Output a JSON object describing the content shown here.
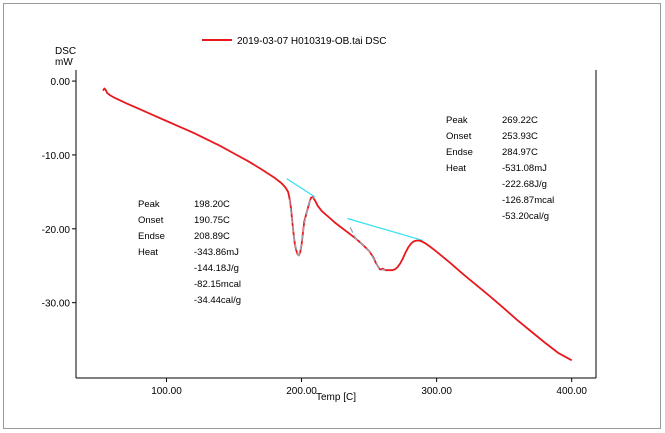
{
  "chart_data": {
    "type": "line",
    "legend": {
      "label": "2019-03-07 H010319-OB.tai DSC",
      "placement": "top-center"
    },
    "ylabel_line1": "DSC",
    "ylabel_line2": "mW",
    "xlabel": "Temp  [C]",
    "xlim": [
      33,
      418
    ],
    "ylim": [
      -40.2,
      1.5
    ],
    "x_ticks": [
      100,
      200,
      300,
      400
    ],
    "x_tick_labels": [
      "100.00",
      "200.00",
      "300.00",
      "400.00"
    ],
    "y_ticks": [
      0,
      -10,
      -20,
      -30
    ],
    "y_tick_labels": [
      "0.00",
      "-10.00",
      "-20.00",
      "-30.00"
    ],
    "series": [
      {
        "color": "#e8191e",
        "x": [
          53,
          54,
          55,
          56,
          58,
          62,
          70,
          80,
          90,
          100,
          110,
          120,
          130,
          140,
          150,
          160,
          170,
          180,
          185,
          188,
          190,
          191,
          192,
          193,
          194,
          195,
          196,
          197,
          198,
          199,
          200,
          201,
          202,
          204,
          206,
          207,
          208,
          209,
          210,
          212,
          215,
          220,
          225,
          230,
          235,
          240,
          245,
          250,
          253,
          255,
          257,
          258,
          259,
          260,
          261,
          262,
          263,
          265,
          267,
          269,
          271,
          273,
          275,
          277,
          279,
          281,
          283,
          285,
          287,
          289,
          292,
          295,
          300,
          310,
          320,
          330,
          340,
          350,
          360,
          370,
          380,
          390,
          400
        ],
        "y": [
          -1.3,
          -1.0,
          -1.2,
          -1.6,
          -1.9,
          -2.3,
          -3.0,
          -3.8,
          -4.6,
          -5.4,
          -6.2,
          -7.0,
          -7.9,
          -8.8,
          -9.8,
          -10.8,
          -11.9,
          -13.1,
          -13.8,
          -14.4,
          -15.0,
          -15.8,
          -17.0,
          -18.8,
          -20.6,
          -22.0,
          -22.9,
          -23.4,
          -23.6,
          -23.2,
          -22.1,
          -20.6,
          -19.0,
          -17.6,
          -16.3,
          -15.8,
          -15.7,
          -15.9,
          -16.2,
          -16.9,
          -17.6,
          -18.4,
          -19.2,
          -19.9,
          -20.6,
          -21.3,
          -22.1,
          -23.0,
          -23.8,
          -24.6,
          -25.2,
          -25.5,
          -25.5,
          -25.4,
          -25.5,
          -25.6,
          -25.6,
          -25.6,
          -25.6,
          -25.5,
          -25.2,
          -24.7,
          -24.0,
          -23.2,
          -22.5,
          -22.0,
          -21.7,
          -21.6,
          -21.6,
          -21.7,
          -22.0,
          -22.4,
          -23.1,
          -24.6,
          -26.2,
          -27.7,
          -29.2,
          -30.8,
          -32.4,
          -33.9,
          -35.4,
          -36.8,
          -37.8
        ]
      }
    ],
    "baselines": [
      {
        "color": "#33e0f0",
        "x": [
          189,
          210
        ],
        "y": [
          -13.2,
          -15.7
        ]
      },
      {
        "color": "#33e0f0",
        "x": [
          234,
          290
        ],
        "y": [
          -18.6,
          -21.6
        ]
      }
    ],
    "peak_overlays": [
      {
        "color": "#9aa8b8",
        "x": [
          191,
          193,
          195,
          197,
          198,
          199,
          201,
          203,
          205,
          207,
          209
        ],
        "y": [
          -16.0,
          -19.0,
          -22.0,
          -23.3,
          -23.6,
          -23.2,
          -20.6,
          -18.4,
          -16.8,
          -15.9,
          -15.8
        ]
      },
      {
        "color": "#9aa8b8",
        "x": [
          236,
          240,
          245,
          250,
          255,
          258,
          262
        ],
        "y": [
          -19.8,
          -21.3,
          -22.1,
          -23.0,
          -24.6,
          -25.5,
          -25.6
        ]
      }
    ],
    "annotations": [
      {
        "rows": [
          {
            "label": "Peak",
            "value": "198.20C"
          },
          {
            "label": "Onset",
            "value": "190.75C"
          },
          {
            "label": "Endse",
            "value": "208.89C"
          },
          {
            "label": "Heat",
            "value": "-343.86mJ"
          },
          {
            "label": "",
            "value": "-144.18J/g"
          },
          {
            "label": "",
            "value": "-82.15mcal"
          },
          {
            "label": "",
            "value": "-34.44cal/g"
          }
        ]
      },
      {
        "rows": [
          {
            "label": "Peak",
            "value": "269.22C"
          },
          {
            "label": "Onset",
            "value": "253.93C"
          },
          {
            "label": "Endse",
            "value": "284.97C"
          },
          {
            "label": "Heat",
            "value": "-531.08mJ"
          },
          {
            "label": "",
            "value": "-222.68J/g"
          },
          {
            "label": "",
            "value": "-126.87mcal"
          },
          {
            "label": "",
            "value": "-53.20cal/g"
          }
        ]
      }
    ]
  }
}
